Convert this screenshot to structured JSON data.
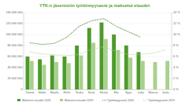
{
  "chart_data": {
    "type": "bar",
    "title": "YTK:n jäsenistön työttömyysaste ja maksetut etuudet",
    "categories": [
      "Tammi",
      "Helmi",
      "Maalis",
      "Huhti",
      "Touko",
      "Kesä",
      "Heinä",
      "Elo",
      "Syys",
      "Loka",
      "Marras",
      "Joulu"
    ],
    "series": [
      {
        "name": "Maksetut etuudet 2020",
        "type": "bar",
        "color": "#4e9a2b",
        "values": [
          60000000,
          55000000,
          62000000,
          60000000,
          80000000,
          112000000,
          122000000,
          100000000,
          80000000,
          68000000,
          null,
          null
        ]
      },
      {
        "name": "Maksetut etuudet 2019",
        "type": "bar",
        "color": "#a9d18e",
        "values": [
          52000000,
          45000000,
          50000000,
          48000000,
          62000000,
          85000000,
          92000000,
          72000000,
          58000000,
          52000000,
          50000000,
          52000000
        ]
      },
      {
        "name": "Työttömyysaste 2020",
        "type": "line",
        "axis": "y2",
        "color": "#3c7d22",
        "line_style": "dotted",
        "values": [
          8.5,
          8.2,
          8.4,
          9.5,
          11.5,
          12.5,
          12.9,
          11.5,
          10.5,
          9.5,
          null,
          null
        ]
      },
      {
        "name": "Työttömyysaste 2019",
        "type": "line",
        "axis": "y2",
        "color": "#a9d18e",
        "line_style": "dotted",
        "values": [
          6.8,
          6.5,
          6.3,
          6.2,
          6.4,
          7.3,
          7.8,
          6.9,
          6.4,
          6.4,
          6.6,
          7.2
        ]
      }
    ],
    "ylim": [
      0,
      140000000
    ],
    "yticks": [
      {
        "value": 0,
        "label": "0"
      },
      {
        "value": 20000000,
        "label": "20 000 000"
      },
      {
        "value": 40000000,
        "label": "40 000 000"
      },
      {
        "value": 60000000,
        "label": "60 000 000"
      },
      {
        "value": 80000000,
        "label": "80 000 000"
      },
      {
        "value": 100000000,
        "label": "100 000 000"
      },
      {
        "value": 120000000,
        "label": "120 000 000"
      },
      {
        "value": 140000000,
        "label": "140 000 000"
      }
    ],
    "y2lim": [
      0,
      14
    ],
    "y2ticks": [
      {
        "value": 0,
        "label": "0 %"
      },
      {
        "value": 2,
        "label": "2 %"
      },
      {
        "value": 4,
        "label": "4 %"
      },
      {
        "value": 6,
        "label": "6 %"
      },
      {
        "value": 8,
        "label": "8 %"
      },
      {
        "value": 10,
        "label": "10 %"
      },
      {
        "value": 12,
        "label": "12 %"
      },
      {
        "value": 14,
        "label": "14 %"
      }
    ],
    "grid": true,
    "legend": "bottom"
  }
}
